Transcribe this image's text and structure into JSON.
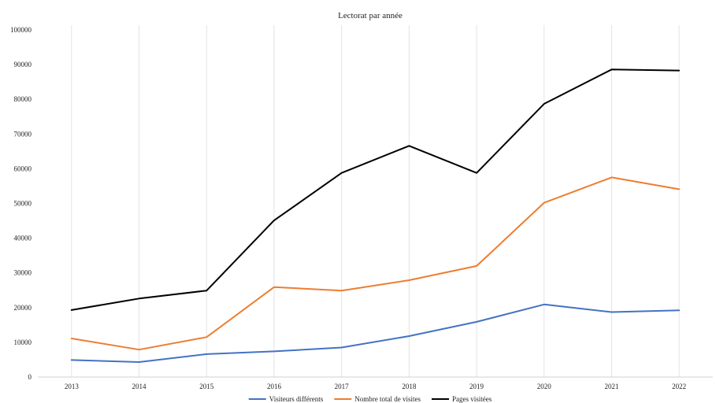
{
  "chart_data": {
    "type": "line",
    "title": "Lectorat par année",
    "xlabel": "",
    "ylabel": "",
    "categories": [
      "2013",
      "2014",
      "2015",
      "2016",
      "2017",
      "2018",
      "2019",
      "2020",
      "2021",
      "2022"
    ],
    "ylim": [
      0,
      100000
    ],
    "yticks": [
      0,
      10000,
      20000,
      30000,
      40000,
      50000,
      60000,
      70000,
      80000,
      90000,
      100000
    ],
    "grid": "vertical",
    "legend": "bottom",
    "series": [
      {
        "name": "Visiteurs différents",
        "color": "#4472c4",
        "values": [
          4900,
          4300,
          6600,
          7400,
          8500,
          11800,
          15900,
          20900,
          18700,
          19200
        ]
      },
      {
        "name": "Nombre total de visites",
        "color": "#ed7d31",
        "values": [
          11100,
          7900,
          11500,
          25900,
          24900,
          27900,
          32000,
          50200,
          57500,
          54100
        ]
      },
      {
        "name": "Pages visitées",
        "color": "#000000",
        "values": [
          19300,
          22600,
          24900,
          45100,
          58800,
          66600,
          58800,
          78700,
          88600,
          88300
        ]
      }
    ]
  }
}
